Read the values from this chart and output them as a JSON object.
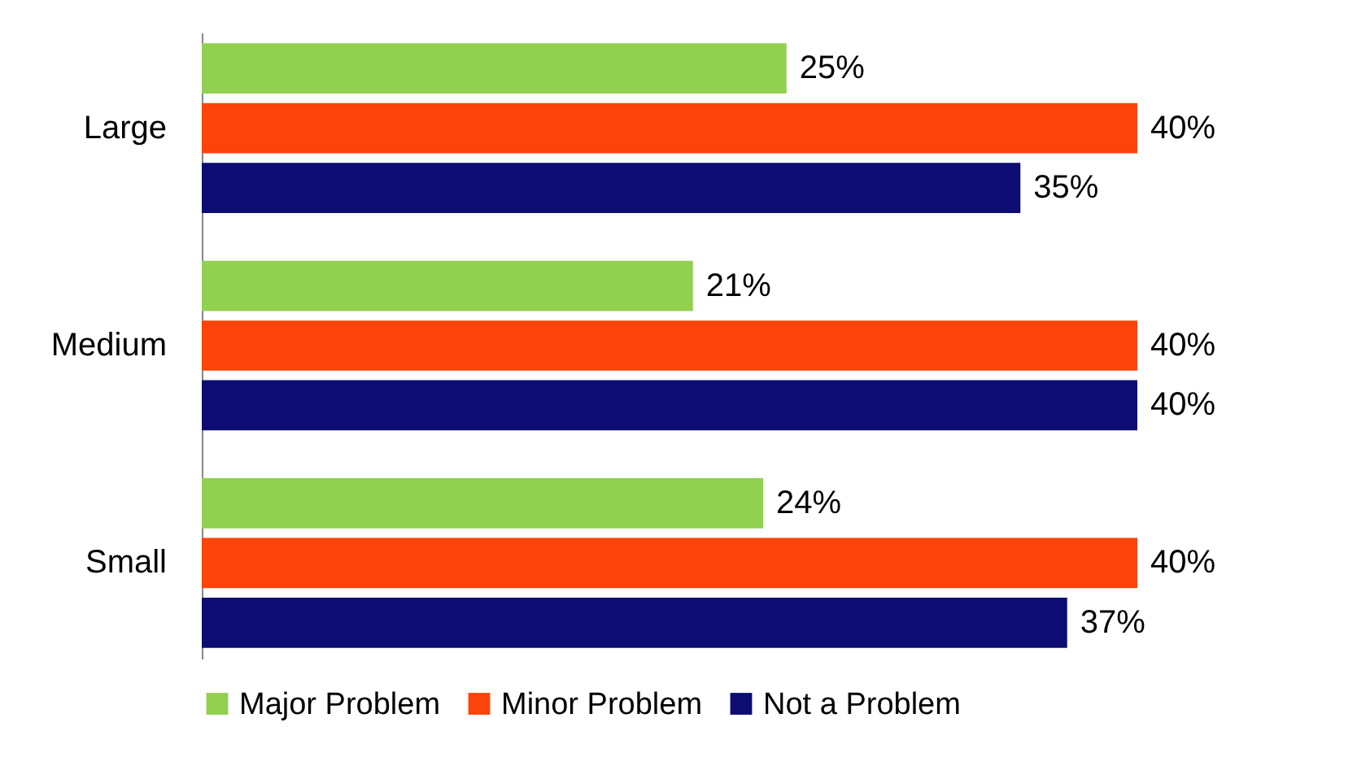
{
  "chart_data": {
    "type": "bar",
    "orientation": "horizontal",
    "categories": [
      "Large",
      "Medium",
      "Small"
    ],
    "series": [
      {
        "name": "Major Problem",
        "color": "#92d050",
        "values": [
          25,
          21,
          24
        ],
        "value_labels": [
          "25%",
          "21%",
          "24%"
        ]
      },
      {
        "name": "Minor Problem",
        "color": "#fc4309",
        "values": [
          40,
          40,
          40
        ],
        "value_labels": [
          "40%",
          "40%",
          "40%"
        ]
      },
      {
        "name": "Not a Problem",
        "color": "#0c0c72",
        "values": [
          35,
          40,
          37
        ],
        "value_labels": [
          "35%",
          "40%",
          "37%"
        ]
      }
    ],
    "legend": "bottom",
    "grid": false
  }
}
